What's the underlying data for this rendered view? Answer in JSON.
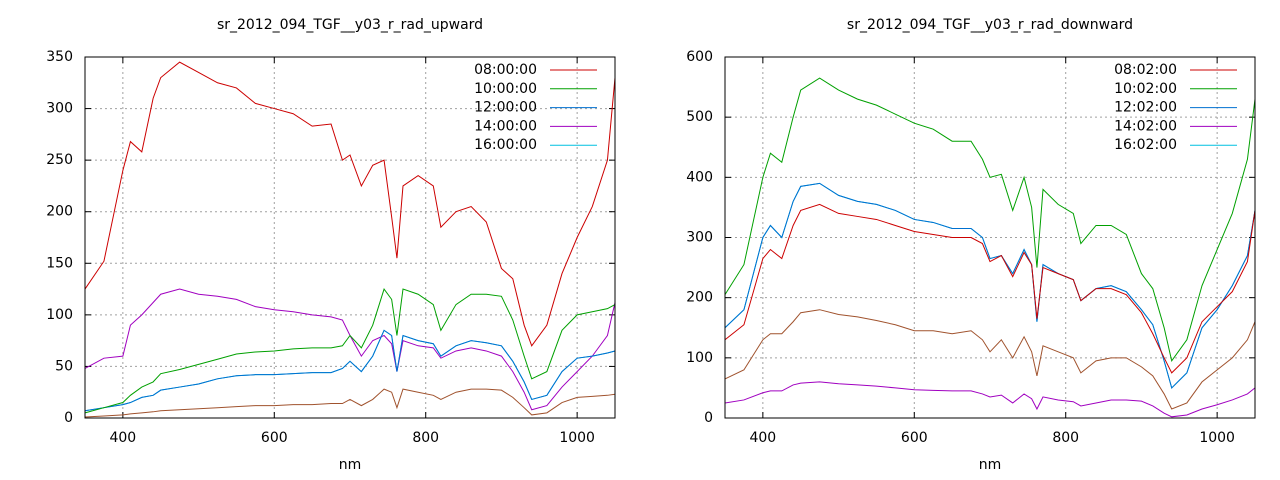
{
  "chart_data": [
    {
      "type": "line",
      "title": "sr_2012_094_TGF__y03_r_rad_upward",
      "xlabel": "nm",
      "x": [
        350,
        375,
        400,
        410,
        425,
        440,
        450,
        475,
        500,
        525,
        550,
        575,
        600,
        625,
        650,
        675,
        690,
        700,
        715,
        730,
        745,
        755,
        762,
        770,
        790,
        810,
        820,
        840,
        860,
        880,
        900,
        915,
        930,
        940,
        960,
        980,
        1000,
        1020,
        1040,
        1050
      ],
      "xlim": [
        350,
        1050
      ],
      "xticks": [
        400,
        600,
        800,
        1000
      ],
      "ylim": [
        0,
        350
      ],
      "yticks": [
        0,
        50,
        100,
        150,
        200,
        250,
        300,
        350
      ],
      "grid": true,
      "legend": "upper right",
      "series": [
        {
          "name": "08:00:00",
          "color": "#cc0000",
          "values": [
            125,
            152,
            240,
            268,
            258,
            310,
            330,
            345,
            335,
            325,
            320,
            305,
            300,
            295,
            283,
            285,
            250,
            255,
            225,
            245,
            250,
            195,
            155,
            225,
            235,
            225,
            185,
            200,
            205,
            190,
            145,
            135,
            90,
            70,
            90,
            140,
            175,
            205,
            250,
            330
          ]
        },
        {
          "name": "10:00:00",
          "color": "#00a000",
          "values": [
            5,
            10,
            15,
            22,
            30,
            35,
            43,
            47,
            52,
            57,
            62,
            64,
            65,
            67,
            68,
            68,
            70,
            80,
            68,
            90,
            125,
            115,
            80,
            125,
            120,
            110,
            85,
            110,
            120,
            120,
            118,
            95,
            60,
            38,
            45,
            85,
            100,
            103,
            106,
            110
          ]
        },
        {
          "name": "12:00:00",
          "color": "#0070d0",
          "values": [
            7,
            10,
            13,
            15,
            20,
            22,
            27,
            30,
            33,
            38,
            41,
            42,
            42,
            43,
            44,
            44,
            48,
            55,
            45,
            60,
            85,
            80,
            45,
            80,
            75,
            72,
            60,
            70,
            75,
            73,
            70,
            55,
            35,
            18,
            22,
            45,
            58,
            60,
            63,
            65
          ]
        },
        {
          "name": "14:00:00",
          "color": "#a000c0",
          "values": [
            48,
            58,
            60,
            90,
            100,
            112,
            120,
            125,
            120,
            118,
            115,
            108,
            105,
            103,
            100,
            98,
            95,
            80,
            60,
            75,
            80,
            72,
            45,
            75,
            70,
            68,
            58,
            65,
            68,
            65,
            60,
            45,
            25,
            8,
            12,
            30,
            45,
            60,
            80,
            112
          ]
        },
        {
          "name": "16:00:00",
          "color": "#00c0e0",
          "values": [
            7,
            10,
            13,
            15,
            20,
            22,
            27,
            30,
            33,
            38,
            41,
            42,
            42,
            43,
            44,
            44,
            48,
            55,
            45,
            60,
            85,
            80,
            45,
            80,
            75,
            72,
            60,
            70,
            75,
            73,
            70,
            55,
            35,
            18,
            22,
            45,
            58,
            60,
            63,
            65
          ]
        },
        {
          "color": "#a0522d",
          "values": [
            1,
            2,
            3,
            4,
            5,
            6,
            7,
            8,
            9,
            10,
            11,
            12,
            12,
            13,
            13,
            14,
            14,
            18,
            12,
            18,
            28,
            25,
            10,
            28,
            25,
            22,
            18,
            25,
            28,
            28,
            27,
            20,
            10,
            3,
            5,
            15,
            20,
            21,
            22,
            23
          ]
        }
      ]
    },
    {
      "type": "line",
      "title": "sr_2012_094_TGF__y03_r_rad_downward",
      "xlabel": "nm",
      "x": [
        350,
        375,
        400,
        410,
        425,
        440,
        450,
        475,
        500,
        525,
        550,
        575,
        600,
        625,
        650,
        675,
        690,
        700,
        715,
        730,
        745,
        755,
        762,
        770,
        790,
        810,
        820,
        840,
        860,
        880,
        900,
        915,
        930,
        940,
        960,
        980,
        1000,
        1020,
        1040,
        1050
      ],
      "xlim": [
        350,
        1050
      ],
      "xticks": [
        400,
        600,
        800,
        1000
      ],
      "ylim": [
        0,
        600
      ],
      "yticks": [
        0,
        100,
        200,
        300,
        400,
        500,
        600
      ],
      "grid": true,
      "legend": "upper right",
      "series": [
        {
          "name": "08:02:00",
          "color": "#cc0000",
          "values": [
            130,
            155,
            265,
            280,
            265,
            320,
            345,
            355,
            340,
            335,
            330,
            320,
            310,
            305,
            300,
            300,
            290,
            260,
            270,
            235,
            275,
            255,
            165,
            250,
            240,
            230,
            195,
            215,
            215,
            205,
            175,
            140,
            100,
            75,
            100,
            160,
            185,
            210,
            260,
            345
          ]
        },
        {
          "name": "10:02:00",
          "color": "#00a000",
          "values": [
            205,
            255,
            400,
            440,
            425,
            500,
            545,
            565,
            545,
            530,
            520,
            505,
            490,
            480,
            460,
            460,
            430,
            400,
            405,
            345,
            400,
            350,
            250,
            380,
            355,
            340,
            290,
            320,
            320,
            305,
            240,
            215,
            150,
            95,
            130,
            220,
            280,
            340,
            430,
            530
          ]
        },
        {
          "name": "12:02:00",
          "color": "#0070d0",
          "values": [
            150,
            180,
            300,
            320,
            300,
            360,
            385,
            390,
            370,
            360,
            355,
            345,
            330,
            325,
            315,
            315,
            300,
            265,
            270,
            240,
            280,
            255,
            160,
            255,
            240,
            230,
            195,
            215,
            220,
            210,
            180,
            155,
            95,
            50,
            75,
            150,
            180,
            220,
            270,
            345
          ]
        },
        {
          "name": "14:02:00",
          "color": "#a000c0",
          "values": [
            25,
            30,
            42,
            45,
            45,
            55,
            58,
            60,
            57,
            55,
            53,
            50,
            47,
            46,
            45,
            45,
            40,
            35,
            38,
            25,
            40,
            32,
            15,
            35,
            30,
            27,
            20,
            25,
            30,
            30,
            28,
            20,
            8,
            2,
            5,
            15,
            22,
            30,
            40,
            50
          ]
        },
        {
          "name": "16:02:00",
          "color": "#00c0e0",
          "values": [
            150,
            180,
            300,
            320,
            300,
            360,
            385,
            390,
            370,
            360,
            355,
            345,
            330,
            325,
            315,
            315,
            300,
            265,
            270,
            240,
            280,
            255,
            160,
            255,
            240,
            230,
            195,
            215,
            220,
            210,
            180,
            155,
            95,
            50,
            75,
            150,
            180,
            220,
            270,
            345
          ]
        },
        {
          "color": "#a0522d",
          "values": [
            65,
            80,
            130,
            140,
            140,
            160,
            175,
            180,
            172,
            168,
            162,
            155,
            145,
            145,
            140,
            145,
            130,
            110,
            130,
            100,
            135,
            110,
            70,
            120,
            110,
            100,
            75,
            95,
            100,
            100,
            85,
            70,
            40,
            15,
            25,
            60,
            80,
            100,
            130,
            160
          ]
        }
      ]
    }
  ]
}
